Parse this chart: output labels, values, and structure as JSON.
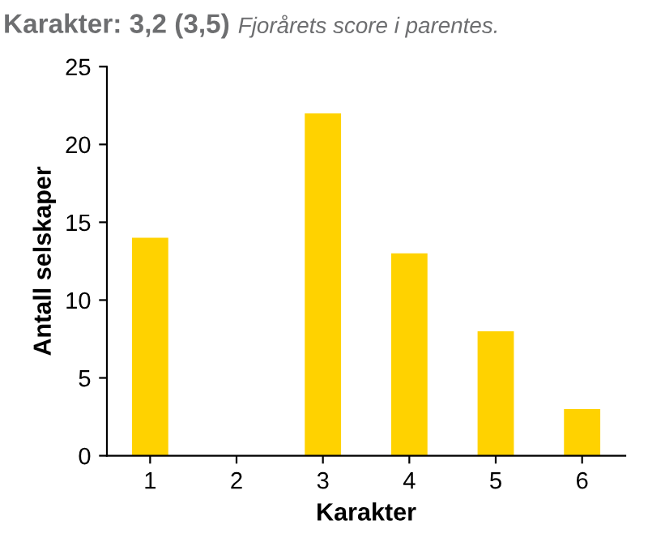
{
  "chart_data": {
    "type": "bar",
    "title": "Karakter: 3,2 (3,5)",
    "subtitle": "Fjorårets score i parentes.",
    "xlabel": "Karakter",
    "ylabel": "Antall selskaper",
    "categories": [
      "1",
      "2",
      "3",
      "4",
      "5",
      "6"
    ],
    "values": [
      14,
      0,
      22,
      13,
      8,
      3
    ],
    "color": "#ffd200",
    "ylim": [
      0,
      25
    ],
    "yticks": [
      0,
      5,
      10,
      15,
      20,
      25
    ],
    "grid": false,
    "legend": false
  }
}
